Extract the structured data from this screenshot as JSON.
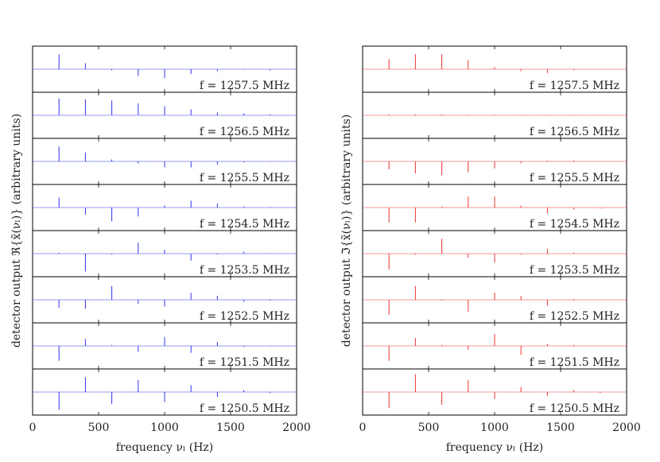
{
  "chart_data": [
    {
      "type": "stem",
      "panel": "left",
      "color": "#3333ee",
      "ylabel": "detector output ℜ{x̃(νₗ)} (arbitrary units)",
      "xlabel": "frequency νₗ (Hz)",
      "xlim": [
        0,
        2000
      ],
      "xticks": [
        0,
        500,
        1000,
        1500,
        2000
      ],
      "ylim": [
        -1,
        1
      ],
      "x": [
        200,
        400,
        600,
        800,
        1000,
        1200,
        1400,
        1600,
        1800
      ],
      "series": [
        {
          "name": "f = 1257.5 MHz",
          "values": [
            0.75,
            0.3,
            -0.06,
            -0.35,
            -0.45,
            -0.25,
            -0.1,
            -0.02,
            -0.06
          ]
        },
        {
          "name": "f = 1256.5 MHz",
          "values": [
            0.85,
            0.8,
            0.75,
            0.6,
            0.45,
            0.3,
            0.15,
            0.1,
            0.05
          ]
        },
        {
          "name": "f = 1255.5 MHz",
          "values": [
            0.75,
            0.45,
            0.1,
            -0.1,
            -0.3,
            -0.3,
            -0.15,
            -0.05,
            -0.02
          ]
        },
        {
          "name": "f = 1254.5 MHz",
          "values": [
            0.5,
            -0.35,
            -0.7,
            -0.45,
            0.1,
            0.35,
            0.2,
            0.05,
            0.03
          ]
        },
        {
          "name": "f = 1253.5 MHz",
          "values": [
            0.05,
            -0.9,
            -0.05,
            0.55,
            0.2,
            -0.35,
            -0.05,
            0.1,
            0.02
          ]
        },
        {
          "name": "f = 1252.5 MHz",
          "values": [
            -0.4,
            -0.45,
            0.7,
            -0.2,
            -0.35,
            0.35,
            0.2,
            -0.1,
            -0.05
          ]
        },
        {
          "name": "f = 1251.5 MHz",
          "values": [
            -0.75,
            0.35,
            0.05,
            -0.3,
            0.45,
            -0.35,
            0.2,
            -0.05,
            0.02
          ]
        },
        {
          "name": "f = 1250.5 MHz",
          "values": [
            -0.9,
            0.75,
            -0.6,
            0.6,
            -0.5,
            0.35,
            -0.25,
            0.1,
            -0.05
          ]
        }
      ]
    },
    {
      "type": "stem",
      "panel": "right",
      "color": "#ee3333",
      "ylabel": "detector output ℑ{x̃(νₗ)} (arbitrary units)",
      "xlabel": "frequency νₗ (Hz)",
      "xlim": [
        0,
        2000
      ],
      "xticks": [
        0,
        500,
        1000,
        1500,
        2000
      ],
      "ylim": [
        -1,
        1
      ],
      "x": [
        200,
        400,
        600,
        800,
        1000,
        1200,
        1400,
        1600,
        1800
      ],
      "series": [
        {
          "name": "f = 1257.5 MHz",
          "values": [
            0.5,
            0.75,
            0.75,
            0.45,
            0.1,
            -0.1,
            -0.2,
            -0.05,
            -0.02
          ]
        },
        {
          "name": "f = 1256.5 MHz",
          "values": [
            0.05,
            0.05,
            0.05,
            0.03,
            0.03,
            0.02,
            0.02,
            0.02,
            0.01
          ]
        },
        {
          "name": "f = 1255.5 MHz",
          "values": [
            -0.4,
            -0.6,
            -0.7,
            -0.55,
            -0.35,
            -0.1,
            0.05,
            0.05,
            0.02
          ]
        },
        {
          "name": "f = 1254.5 MHz",
          "values": [
            -0.75,
            -0.75,
            0.05,
            0.55,
            0.55,
            0.1,
            -0.3,
            -0.1,
            -0.05
          ]
        },
        {
          "name": "f = 1253.5 MHz",
          "values": [
            -0.8,
            -0.05,
            0.75,
            -0.2,
            -0.45,
            -0.05,
            0.25,
            0.05,
            0.02
          ]
        },
        {
          "name": "f = 1252.5 MHz",
          "values": [
            -0.75,
            0.7,
            -0.05,
            -0.6,
            0.35,
            0.2,
            -0.3,
            -0.05,
            -0.02
          ]
        },
        {
          "name": "f = 1251.5 MHz",
          "values": [
            -0.75,
            0.4,
            0.05,
            -0.2,
            0.6,
            -0.45,
            0.1,
            0.05,
            0.02
          ]
        },
        {
          "name": "f = 1250.5 MHz",
          "values": [
            -0.8,
            0.9,
            -0.65,
            0.6,
            -0.35,
            0.25,
            -0.2,
            0.1,
            -0.05
          ]
        }
      ]
    }
  ]
}
